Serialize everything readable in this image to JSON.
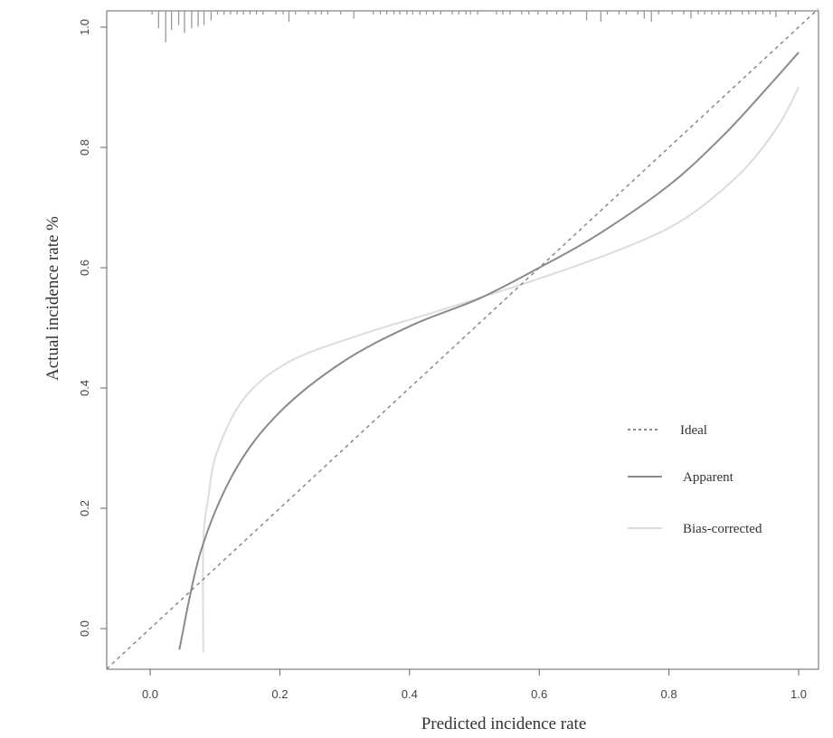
{
  "chart_data": {
    "type": "line",
    "title": "",
    "xlabel": "Predicted incidence rate",
    "ylabel": "Actual incidence rate %",
    "xlim": [
      -0.067,
      1.03
    ],
    "ylim": [
      -0.068,
      1.027
    ],
    "xticks": [
      "0.0",
      "0.2",
      "0.4",
      "0.6",
      "0.8",
      "1.0"
    ],
    "yticks": [
      "0.0",
      "0.2",
      "0.4",
      "0.6",
      "0.8",
      "1.0"
    ],
    "grid": false,
    "legend_position": "right",
    "series": [
      {
        "name": "Ideal",
        "style": "dotted",
        "color": "#888888",
        "x": [
          -0.067,
          1.03
        ],
        "y": [
          -0.067,
          1.03
        ]
      },
      {
        "name": "Apparent",
        "style": "solid",
        "color": "#8a8a8a",
        "x": [
          0.045,
          0.078,
          0.131,
          0.2,
          0.298,
          0.403,
          0.508,
          0.6,
          0.689,
          0.8,
          0.884,
          0.954,
          1.0
        ],
        "y": [
          -0.035,
          0.128,
          0.263,
          0.36,
          0.444,
          0.504,
          0.549,
          0.6,
          0.654,
          0.737,
          0.82,
          0.902,
          0.958
        ]
      },
      {
        "name": "Bias-corrected",
        "style": "solid",
        "color": "#dcdcdc",
        "x": [
          0.082,
          0.082,
          0.09,
          0.103,
          0.145,
          0.215,
          0.326,
          0.438,
          0.549,
          0.633,
          0.745,
          0.828,
          0.912,
          0.968,
          1.0
        ],
        "y": [
          -0.04,
          0.143,
          0.22,
          0.293,
          0.383,
          0.444,
          0.489,
          0.526,
          0.564,
          0.594,
          0.639,
          0.684,
          0.759,
          0.835,
          0.9
        ]
      }
    ],
    "rug": {
      "x": [
        0.003,
        0.013,
        0.024,
        0.033,
        0.044,
        0.053,
        0.064,
        0.074,
        0.083,
        0.094,
        0.104,
        0.114,
        0.124,
        0.134,
        0.144,
        0.154,
        0.164,
        0.174,
        0.194,
        0.205,
        0.214,
        0.224,
        0.244,
        0.255,
        0.264,
        0.274,
        0.294,
        0.314,
        0.344,
        0.355,
        0.365,
        0.376,
        0.385,
        0.396,
        0.405,
        0.416,
        0.426,
        0.437,
        0.448,
        0.466,
        0.476,
        0.487,
        0.494,
        0.505,
        0.534,
        0.544,
        0.555,
        0.573,
        0.584,
        0.598,
        0.612,
        0.627,
        0.637,
        0.648,
        0.673,
        0.695,
        0.705,
        0.723,
        0.734,
        0.752,
        0.762,
        0.773,
        0.784,
        0.805,
        0.823,
        0.834,
        0.845,
        0.855,
        0.866,
        0.877,
        0.888,
        0.895,
        0.913,
        0.923,
        0.934,
        0.945,
        0.956,
        0.965,
        0.984,
        0.995
      ],
      "relative_height": {
        "0.013": 0.55,
        "0.024": 1.0,
        "0.033": 0.6,
        "0.044": 0.45,
        "0.053": 0.7,
        "0.064": 0.55,
        "0.074": 0.5,
        "0.083": 0.45,
        "0.094": 0.3,
        "0.214": 0.35,
        "0.314": 0.25,
        "0.673": 0.3,
        "0.695": 0.35,
        "0.762": 0.25,
        "0.773": 0.35,
        "0.834": 0.25,
        "0.965": 0.2
      },
      "default_height": 0.12
    }
  }
}
